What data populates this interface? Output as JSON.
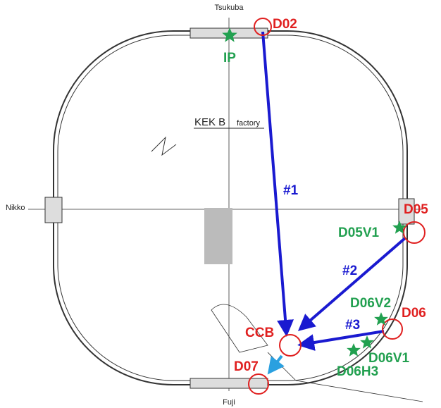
{
  "ring": {
    "top": "Tsukuba",
    "bottom": "Fuji",
    "left": "Nikko",
    "name": "KEK B",
    "name_suffix": "factory"
  },
  "points": {
    "d02": "D02",
    "ip": "IP",
    "d05": "D05",
    "d05v1": "D05V1",
    "d06": "D06",
    "d06v2": "D06V2",
    "d06v1": "D06V1",
    "d06h3": "D06H3",
    "ccb": "CCB",
    "d07": "D07"
  },
  "paths": {
    "p1": "#1",
    "p2": "#2",
    "p3": "#3"
  }
}
